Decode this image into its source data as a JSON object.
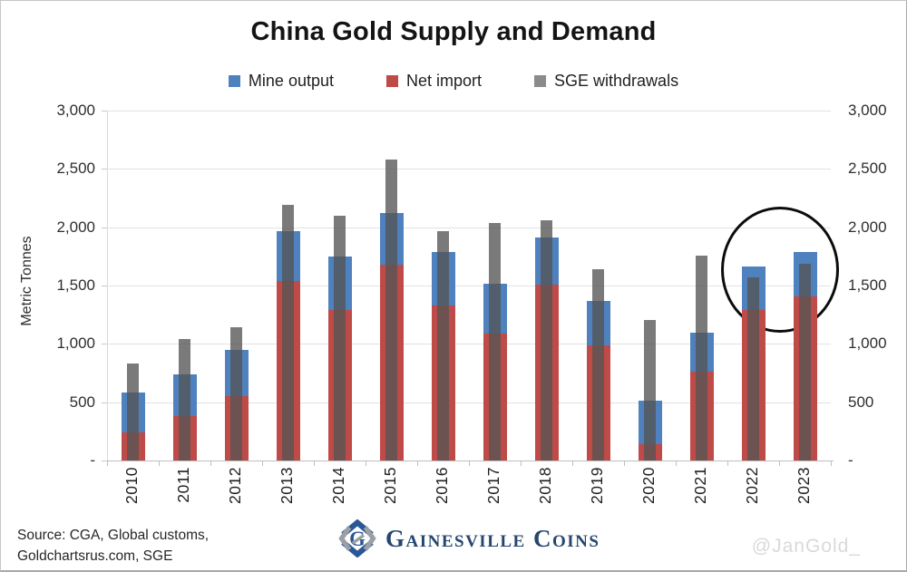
{
  "title": "China Gold Supply and Demand",
  "legend": [
    {
      "label": "Mine output",
      "color": "#4E81BD"
    },
    {
      "label": "Net import",
      "color": "#BE4B47"
    },
    {
      "label": "SGE withdrawals",
      "color": "#8B8B8B"
    }
  ],
  "y_axis": {
    "title": "Metric Tonnes",
    "tick_values": [
      3000,
      2500,
      2000,
      1500,
      1000,
      500,
      0
    ],
    "tick_labels": [
      "3,000",
      "2,500",
      "2,000",
      "1,500",
      "1,000",
      "500",
      "-"
    ]
  },
  "chart_data": {
    "type": "bar",
    "title": "China Gold Supply and Demand",
    "ylabel": "Metric Tonnes",
    "ylim": [
      0,
      3000
    ],
    "grid": "horizontal",
    "legend_position": "top-center",
    "categories": [
      "2010",
      "2011",
      "2012",
      "2013",
      "2014",
      "2015",
      "2016",
      "2017",
      "2018",
      "2019",
      "2020",
      "2021",
      "2022",
      "2023"
    ],
    "series": [
      {
        "name": "Mine output",
        "role": "stacked-top",
        "color": "#4E81BD",
        "values": [
          340,
          360,
          395,
          435,
          455,
          450,
          460,
          430,
          410,
          380,
          375,
          335,
          375,
          375
        ]
      },
      {
        "name": "Net import",
        "role": "stacked-bottom",
        "color": "#BE4B47",
        "values": [
          240,
          380,
          555,
          1535,
          1290,
          1675,
          1330,
          1085,
          1505,
          990,
          140,
          760,
          1290,
          1410
        ]
      },
      {
        "name": "SGE withdrawals",
        "role": "overlay-narrow-bar",
        "color": "rgba(84,84,84,0.78)",
        "values": [
          830,
          1040,
          1140,
          2195,
          2100,
          2580,
          1970,
          2035,
          2060,
          1640,
          1205,
          1760,
          1570,
          1690
        ]
      }
    ],
    "annotation": {
      "shape": "circle-outline",
      "highlighted_categories": [
        "2022",
        "2023"
      ]
    }
  },
  "footer": {
    "source_line1": "Source: CGA, Global customs,",
    "source_line2": "Goldchartsrus.com, SGE",
    "brand": "Gainesville Coins",
    "watermark": "@JanGold_"
  }
}
